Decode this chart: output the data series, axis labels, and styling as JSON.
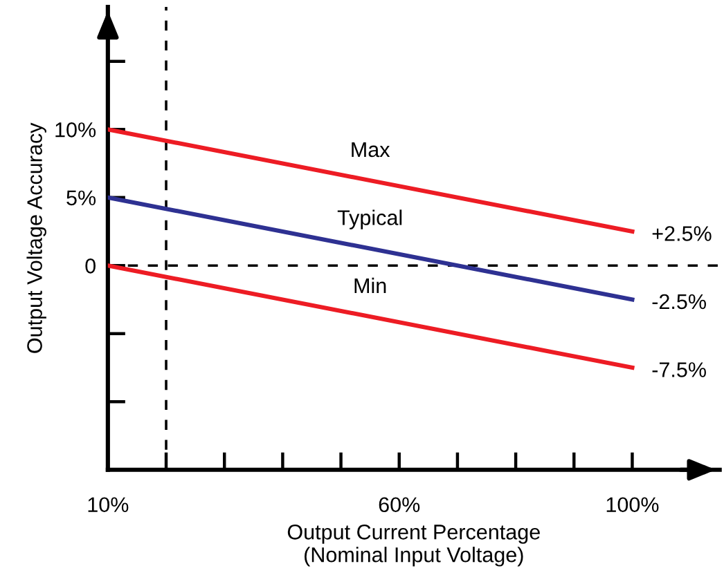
{
  "chart_data": {
    "type": "line",
    "xlabel": "Output Current Percentage\n(Nominal Input Voltage)",
    "ylabel": "Output Voltage Accuracy",
    "x": [
      10,
      100
    ],
    "series": [
      {
        "name": "Max",
        "color": "#ed1c24",
        "values": [
          10,
          2.5
        ],
        "value_labels": [
          null,
          "+2.5%"
        ]
      },
      {
        "name": "Typical",
        "color": "#2e3192",
        "values": [
          5,
          -2.5
        ],
        "value_labels": [
          null,
          "-2.5%"
        ]
      },
      {
        "name": "Min",
        "color": "#ed1c24",
        "values": [
          0,
          -7.5
        ],
        "value_labels": [
          null,
          "-7.5%"
        ]
      }
    ],
    "xlim": [
      10,
      115
    ],
    "ylim": [
      -15,
      19
    ],
    "xticks": [
      {
        "value": 10,
        "label": "10%"
      },
      {
        "value": 20,
        "label": null
      },
      {
        "value": 30,
        "label": null
      },
      {
        "value": 40,
        "label": null
      },
      {
        "value": 50,
        "label": null
      },
      {
        "value": 60,
        "label": "60%"
      },
      {
        "value": 70,
        "label": null
      },
      {
        "value": 80,
        "label": null
      },
      {
        "value": 90,
        "label": null
      },
      {
        "value": 100,
        "label": "100%"
      }
    ],
    "yticks": [
      {
        "value": -10,
        "label": null
      },
      {
        "value": -5,
        "label": null
      },
      0,
      {
        "value": 5,
        "label": "5%"
      },
      {
        "value": 10,
        "label": "10%"
      },
      {
        "value": 15,
        "label": null
      }
    ],
    "ref_lines": [
      {
        "axis": "y",
        "value": 0,
        "color": "#000000",
        "line_style": "dashed"
      },
      {
        "axis": "x",
        "value": 20,
        "color": "#000000",
        "line_style": "dashed"
      }
    ],
    "grid": false,
    "legend": false,
    "marker": "none",
    "line_style": "solid"
  }
}
